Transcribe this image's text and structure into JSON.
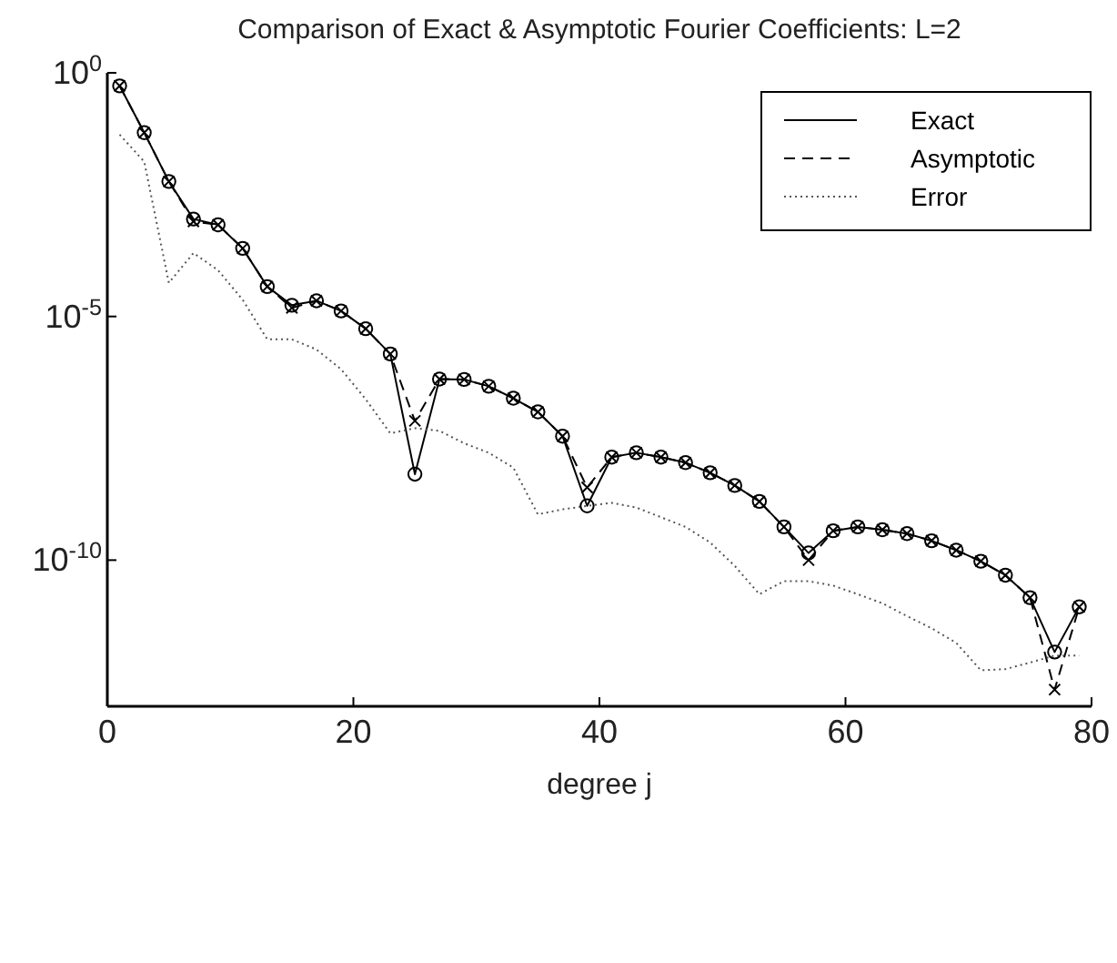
{
  "chart_data": {
    "type": "line",
    "title": "Comparison of Exact & Asymptotic Fourier Coefficients: L=2",
    "xlabel": "degree j",
    "x": [
      1,
      3,
      5,
      7,
      9,
      11,
      13,
      15,
      17,
      19,
      21,
      23,
      25,
      27,
      29,
      31,
      33,
      35,
      37,
      39,
      41,
      43,
      45,
      47,
      49,
      51,
      53,
      55,
      57,
      59,
      61,
      63,
      65,
      67,
      69,
      71,
      73,
      75,
      77,
      79
    ],
    "series": [
      {
        "name": "Exact",
        "color": "#000000",
        "marker": "circle",
        "line_style": "solid",
        "values": [
          0.54,
          0.059,
          0.0059,
          0.001,
          0.00076,
          0.00025,
          4.1e-05,
          1.7e-05,
          2.1e-05,
          1.3e-05,
          5.6e-06,
          1.7e-06,
          5.8e-09,
          5.2e-07,
          5.1e-07,
          3.7e-07,
          2.1e-07,
          1.1e-07,
          3.5e-08,
          1.3e-09,
          1.3e-08,
          1.6e-08,
          1.3e-08,
          1e-08,
          6.2e-09,
          3.4e-09,
          1.6e-09,
          4.8e-10,
          1.4e-10,
          4e-10,
          4.8e-10,
          4.2e-10,
          3.5e-10,
          2.5e-10,
          1.6e-10,
          9.5e-11,
          4.9e-11,
          1.7e-11,
          1.3e-12,
          1.1e-11
        ]
      },
      {
        "name": "Asymptotic",
        "color": "#000000",
        "marker": "cross",
        "line_style": "dashed",
        "values": [
          0.54,
          0.059,
          0.0059,
          0.00089,
          0.00076,
          0.00025,
          4.1e-05,
          1.5e-05,
          2.1e-05,
          1.3e-05,
          5.6e-06,
          1.7e-06,
          7.2e-08,
          5.2e-07,
          5.1e-07,
          3.7e-07,
          2.1e-07,
          1.1e-07,
          3.5e-08,
          3.1e-09,
          1.3e-08,
          1.6e-08,
          1.3e-08,
          1e-08,
          6.2e-09,
          3.4e-09,
          1.6e-09,
          4.8e-10,
          1e-10,
          4e-10,
          4.8e-10,
          4.2e-10,
          3.5e-10,
          2.5e-10,
          1.6e-10,
          9.5e-11,
          4.9e-11,
          1.7e-11,
          2.2e-13,
          1.1e-11
        ]
      },
      {
        "name": "Error",
        "color": "#555555",
        "marker": "none",
        "line_style": "dotted",
        "values": [
          0.054,
          0.015,
          4.9e-05,
          0.0002,
          8.9e-05,
          2.2e-05,
          3.4e-06,
          3.4e-06,
          2.1e-06,
          8.3e-07,
          2e-07,
          4e-08,
          5.1e-08,
          4.5e-08,
          2.5e-08,
          1.6e-08,
          7.9e-09,
          8.7e-10,
          1.1e-09,
          1.3e-09,
          1.5e-09,
          1.2e-09,
          7.6e-10,
          4.8e-10,
          2.3e-10,
          7.6e-11,
          2e-11,
          3.7e-11,
          3.7e-11,
          3e-11,
          2e-11,
          1.3e-11,
          7.1e-12,
          4e-12,
          2e-12,
          5.5e-13,
          5.8e-13,
          7.9e-13,
          1.1e-12,
          1.1e-12
        ]
      }
    ],
    "log": "y",
    "xlim": [
      0,
      80
    ],
    "xticks": [
      0,
      20,
      40,
      60,
      80
    ],
    "ylim": [
      1e-13,
      1
    ],
    "yticks": [
      {
        "value": 1,
        "label": "10$^{0}$"
      },
      {
        "value": 1e-05,
        "label": "10$^{-5}$"
      },
      {
        "value": 1e-10,
        "label": "10$^{-10}$"
      }
    ],
    "grid": false,
    "legend": "top right"
  }
}
